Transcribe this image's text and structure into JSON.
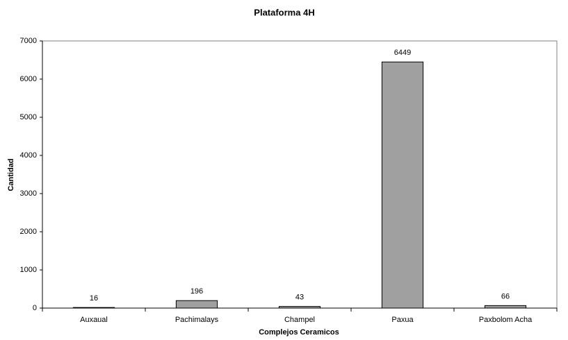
{
  "chart_data": {
    "type": "bar",
    "title": "Plataforma 4H",
    "x_label": "Complejos Ceramicos",
    "y_label": "Cantidad",
    "categories": [
      "Auxaual",
      "Pachimalays",
      "Champel",
      "Paxua",
      "Paxbolom Acha"
    ],
    "values": [
      16,
      196,
      43,
      6449,
      66
    ],
    "color": "#a0a0a0",
    "ylim": [
      0,
      7000
    ],
    "yticks": [
      0,
      1000,
      2000,
      3000,
      4000,
      5000,
      6000,
      7000
    ],
    "grid": false
  }
}
